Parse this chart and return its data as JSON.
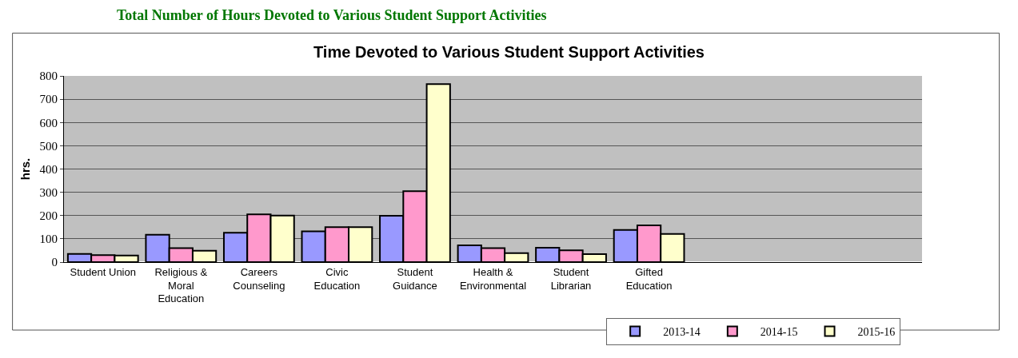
{
  "chart_data": {
    "type": "bar",
    "title": "Time Devoted to Various Student Support Activities",
    "annotations": [
      "Total Number of Hours Devoted to Various Student Support Activities"
    ],
    "ylabel": "hrs.",
    "categories": [
      "Student Union",
      "Religious &\nMoral\nEducation",
      "Careers\nCounseling",
      "Civic\nEducation",
      "Student\nGuidance",
      "Health &\nEnvironmental",
      "Student\nLibrarian",
      "Gifted\nEducation",
      null,
      null,
      null
    ],
    "series": [
      {
        "name": "2013-14",
        "color": "#9999ff",
        "values": [
          35,
          118,
          126,
          132,
          199,
          72,
          62,
          138,
          null,
          null,
          null
        ]
      },
      {
        "name": "2014-15",
        "color": "#ff99cc",
        "values": [
          30,
          60,
          205,
          150,
          305,
          60,
          51,
          158,
          null,
          null,
          null
        ]
      },
      {
        "name": "2015-16",
        "color": "#ffffcc",
        "values": [
          28,
          49,
          200,
          150,
          765,
          39,
          34,
          121,
          null,
          null,
          null
        ]
      }
    ],
    "ylim": [
      0,
      800
    ],
    "yticks": [
      0,
      100,
      200,
      300,
      400,
      500,
      600,
      700,
      800
    ],
    "grid": "y",
    "legend": "bottom right"
  }
}
